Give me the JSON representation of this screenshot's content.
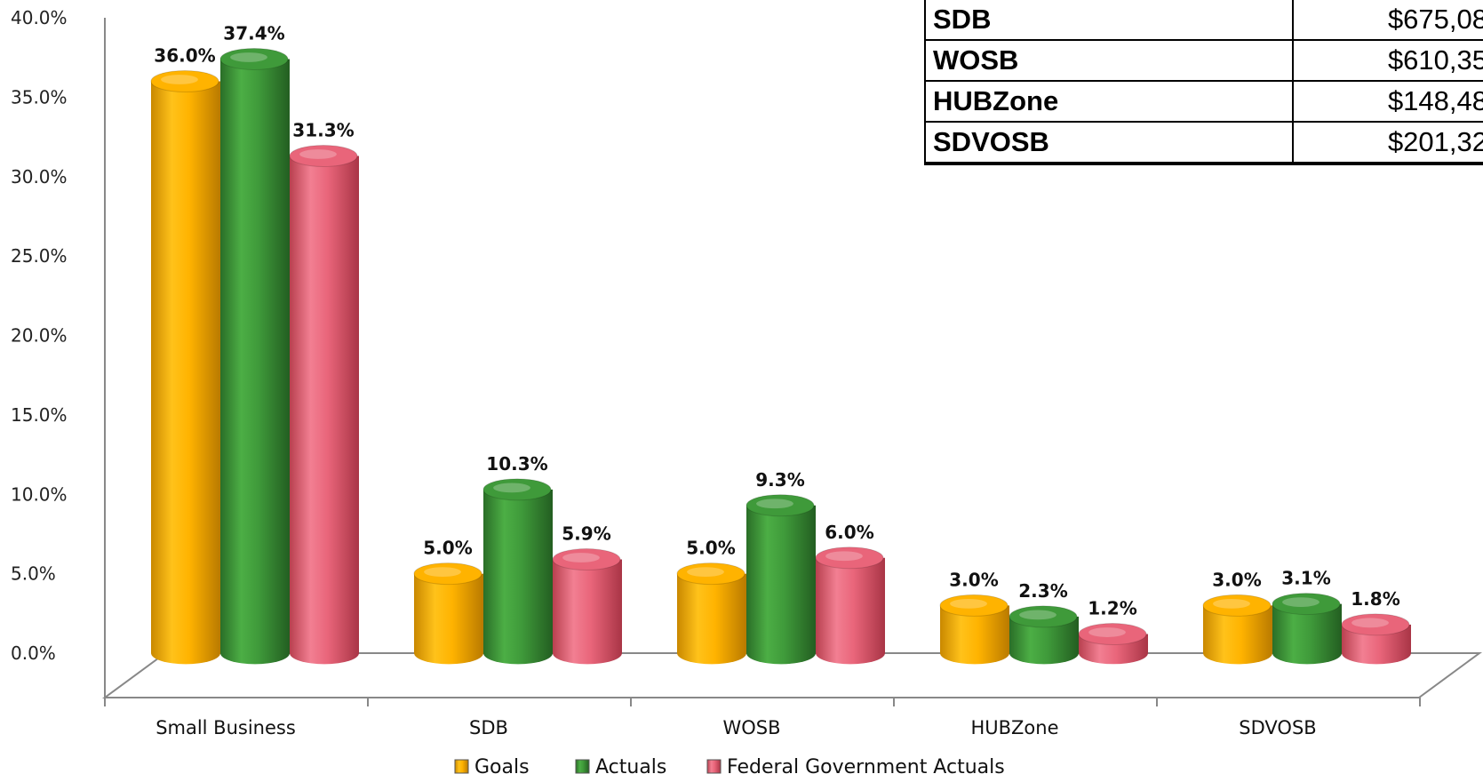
{
  "chart_data": {
    "type": "bar",
    "categories": [
      "Small Business",
      "SDB",
      "WOSB",
      "HUBZone",
      "SDVOSB"
    ],
    "series": [
      {
        "name": "Goals",
        "values": [
          36.0,
          5.0,
          5.0,
          3.0,
          3.0
        ],
        "labels": [
          "36.0%",
          "5.0%",
          "5.0%",
          "3.0%",
          "3.0%"
        ],
        "color": "#FFB300"
      },
      {
        "name": "Actuals",
        "values": [
          37.4,
          10.3,
          9.3,
          2.3,
          3.1
        ],
        "labels": [
          "37.4%",
          "10.3%",
          "9.3%",
          "2.3%",
          "3.1%"
        ],
        "color": "#3F9A3A"
      },
      {
        "name": "Federal Government Actuals",
        "values": [
          31.3,
          5.9,
          6.0,
          1.2,
          1.8
        ],
        "labels": [
          "31.3%",
          "5.9%",
          "6.0%",
          "1.2%",
          "1.8%"
        ],
        "color": "#E9657A"
      }
    ],
    "yticks": [
      "0.0%",
      "5.0%",
      "10.0%",
      "15.0%",
      "20.0%",
      "25.0%",
      "30.0%",
      "35.0%",
      "40.0%"
    ],
    "ylim": [
      0,
      40
    ],
    "legend_position": "bottom",
    "grid": false
  },
  "table": {
    "rows": [
      {
        "category": "SDB",
        "amount": "$675,08"
      },
      {
        "category": "WOSB",
        "amount": "$610,35"
      },
      {
        "category": "HUBZone",
        "amount": "$148,48"
      },
      {
        "category": "SDVOSB",
        "amount": "$201,32"
      }
    ]
  }
}
